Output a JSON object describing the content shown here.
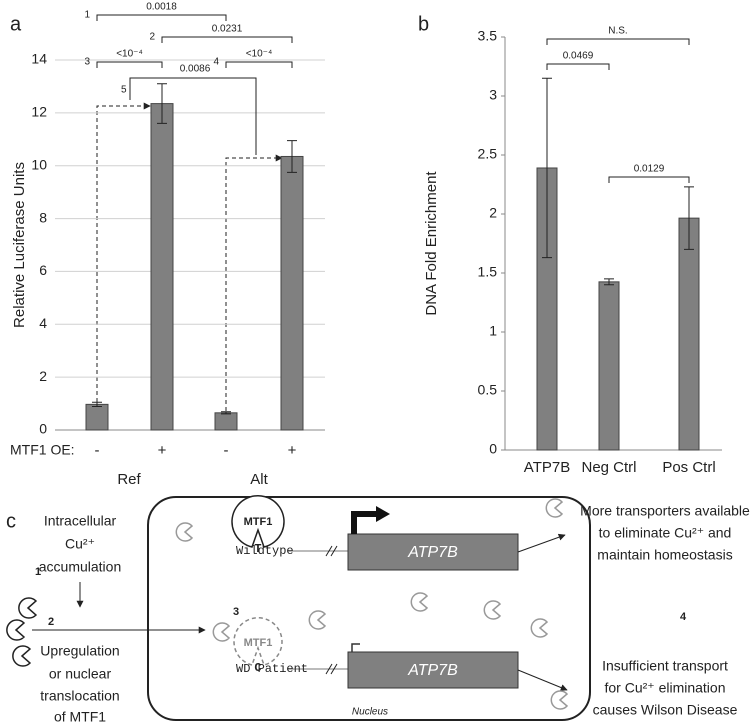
{
  "panel_labels": [
    "a",
    "b",
    "c"
  ],
  "chart_data": [
    {
      "type": "bar",
      "ylabel": "Relative Luciferase Units",
      "x_label": "MTF1 OE:",
      "categories": [
        "-",
        "+",
        "-",
        "+"
      ],
      "groups": [
        "Ref",
        "Alt"
      ],
      "values": [
        0.97,
        12.35,
        0.65,
        10.35
      ],
      "errors": [
        0.08,
        0.75,
        0.04,
        0.6
      ],
      "color": "#808080",
      "ylim": [
        0,
        14
      ],
      "yticks": [
        0,
        2,
        4,
        6,
        8,
        10,
        12,
        14
      ],
      "grid": true,
      "comparisons": [
        {
          "number": "1",
          "label": "0.0018"
        },
        {
          "number": "2",
          "label": "0.0231"
        },
        {
          "number": "3",
          "label": "<10⁻⁴"
        },
        {
          "number": "4",
          "label": "<10⁻⁴"
        },
        {
          "number": "5",
          "label": "0.0086"
        }
      ]
    },
    {
      "type": "bar",
      "ylabel": "DNA Fold Enrichment",
      "categories": [
        "ATP7B",
        "Neg Ctrl",
        "Pos Ctrl"
      ],
      "values": [
        2.39,
        1.425,
        1.965
      ],
      "errors": [
        0.76,
        0.025,
        0.265
      ],
      "color": "#808080",
      "ylim": [
        0,
        3.5
      ],
      "yticks": [
        0,
        0.5,
        1,
        1.5,
        2,
        2.5,
        3,
        3.5
      ],
      "grid": false,
      "comparisons": [
        {
          "label": "N.S."
        },
        {
          "label": "0.0469"
        },
        {
          "label": "0.0129"
        }
      ]
    }
  ],
  "diagram": {
    "step1": {
      "number": "1",
      "lines": [
        "Intracellular",
        "Cu²⁺",
        "accumulation"
      ]
    },
    "step2": {
      "number": "2",
      "lines": [
        "Upregulation",
        "or nuclear",
        "translocation",
        "of MTF1"
      ]
    },
    "step3": {
      "number": "3"
    },
    "step4": {
      "number": "4"
    },
    "wildtype": {
      "label": "Wildtype",
      "factor": "MTF1",
      "base": "T",
      "gene": "ATP7B",
      "outcome": [
        "More transporters available",
        "to eliminate Cu²⁺ and",
        "maintain homeostasis"
      ]
    },
    "patient": {
      "label": "WD Patient",
      "factor": "MTF1",
      "base": "C",
      "gene": "ATP7B",
      "outcome": [
        "Insufficient transport",
        "for Cu²⁺ elimination",
        "causes Wilson Disease"
      ]
    },
    "compartment": "Nucleus"
  }
}
